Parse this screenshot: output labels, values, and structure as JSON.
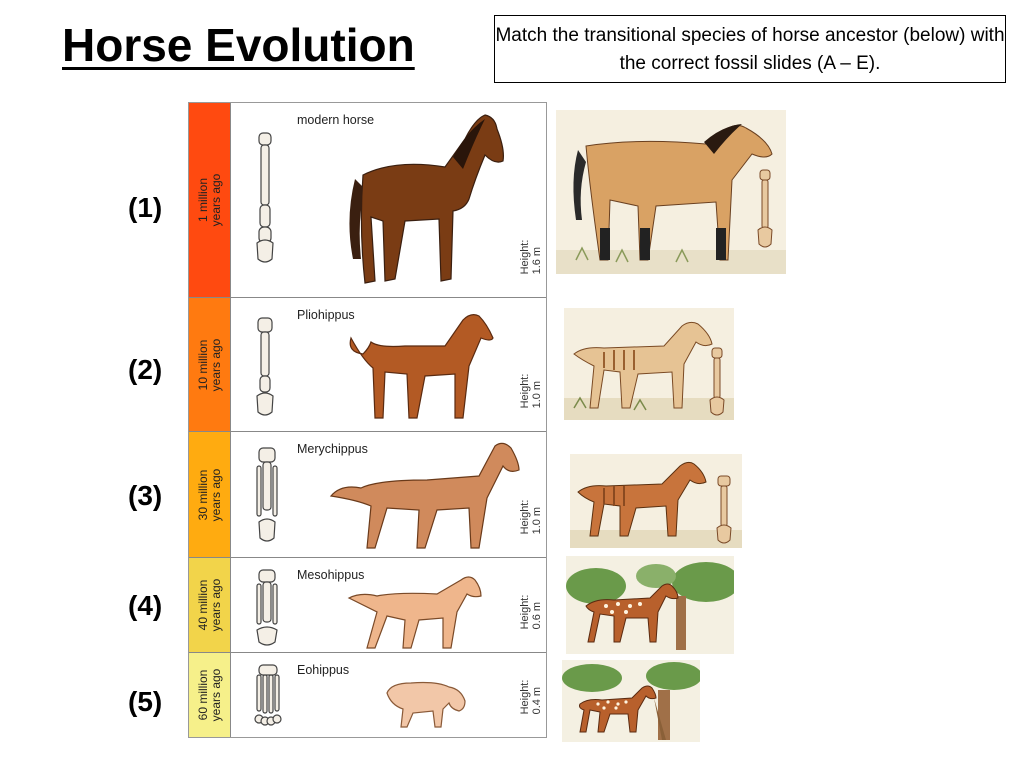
{
  "title": "Horse Evolution",
  "instruction": "Match the transitional species of horse ancestor (below) with the correct fossil slides (A – E).",
  "rows": [
    {
      "number": "(1)",
      "era_line1": "1 million",
      "era_line2": "years ago",
      "species": "modern horse",
      "height_line1": "Height:",
      "height_line2": "1.6 m",
      "color": "#ff4a10"
    },
    {
      "number": "(2)",
      "era_line1": "10 million",
      "era_line2": "years ago",
      "species": "Pliohippus",
      "height_line1": "Height:",
      "height_line2": "1.0 m",
      "color": "#ff7a10"
    },
    {
      "number": "(3)",
      "era_line1": "30 million",
      "era_line2": "years ago",
      "species": "Merychippus",
      "height_line1": "Height:",
      "height_line2": "1.0 m",
      "color": "#ffab10"
    },
    {
      "number": "(4)",
      "era_line1": "40 million",
      "era_line2": "years ago",
      "species": "Mesohippus",
      "height_line1": "Height:",
      "height_line2": "0.6 m",
      "color": "#f2d44a"
    },
    {
      "number": "(5)",
      "era_line1": "60 million",
      "era_line2": "years ago",
      "species": "Eohippus",
      "height_line1": "Height:",
      "height_line2": "0.4 m",
      "color": "#f6f08a"
    }
  ]
}
